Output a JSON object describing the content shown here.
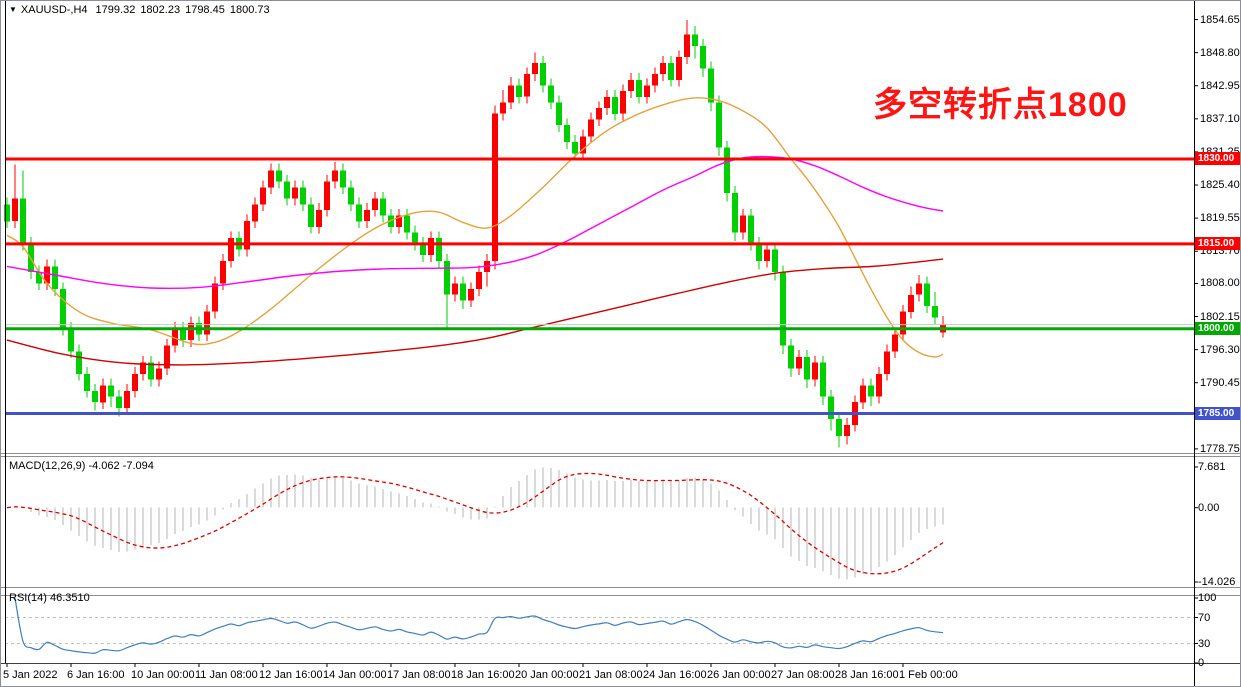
{
  "header": {
    "dropdown_icon": "▼",
    "symbol": "XAUUSD-,H4",
    "open": "1799.32",
    "high": "1802.23",
    "low": "1798.45",
    "close": "1800.73"
  },
  "annotation": {
    "text": "多空转折点1800",
    "color": "#ff1414"
  },
  "panes": {
    "macd": {
      "label": "MACD(12,26,9) -4.062 -7.094",
      "y_ticks": [
        {
          "label": "7.681",
          "value": 7.681
        },
        {
          "label": "0.00",
          "value": 0
        },
        {
          "label": "-14.026",
          "value": -14.026
        }
      ]
    },
    "rsi": {
      "label": "RSI(14) 46.3510",
      "y_ticks": [
        {
          "label": "100",
          "value": 100
        },
        {
          "label": "70",
          "value": 70
        },
        {
          "label": "30",
          "value": 30
        },
        {
          "label": "0",
          "value": 0
        }
      ],
      "levels": [
        70,
        30
      ]
    }
  },
  "colors": {
    "candle_up": "#ff0000",
    "candle_down": "#00d000",
    "ma_fast": "#e6a23c",
    "ma_mid": "#ff00ff",
    "ma_slow": "#d00000",
    "macd_hist": "#b4b4b4",
    "macd_signal": "#e00000",
    "rsi_line": "#3f7fbf",
    "current_price_line": "#c8c8c8",
    "grid_dashed": "#c0c0c0",
    "axis_line": "#000000",
    "separator": "#909090"
  },
  "chart_data": {
    "type": "candlestick",
    "symbol": "XAUUSD-",
    "timeframe": "H4",
    "price_axis_ticks": [
      "1854.65",
      "1848.80",
      "1842.95",
      "1837.10",
      "1831.25",
      "1825.40",
      "1819.55",
      "1813.70",
      "1808.00",
      "1802.15",
      "1796.30",
      "1790.45",
      "1784.60",
      "1778.75"
    ],
    "price_lines": [
      {
        "label": "1830.00",
        "price": 1830.0,
        "color": "#ff0000"
      },
      {
        "label": "1815.00",
        "price": 1815.0,
        "color": "#ff0000"
      },
      {
        "label": "1800.00",
        "price": 1800.0,
        "color": "#00a800"
      },
      {
        "label": "1785.00",
        "price": 1785.0,
        "color": "#4153cc"
      }
    ],
    "current_price": 1800.73,
    "x_axis": {
      "start_index": 0,
      "step": 8,
      "labels": [
        "5 Jan 2022",
        "6 Jan 16:00",
        "10 Jan 00:00",
        "11 Jan 08:00",
        "12 Jan 16:00",
        "14 Jan 00:00",
        "17 Jan 08:00",
        "18 Jan 16:00",
        "20 Jan 00:00",
        "21 Jan 08:00",
        "24 Jan 16:00",
        "26 Jan 00:00",
        "27 Jan 08:00",
        "28 Jan 16:00",
        "1 Feb 00:00"
      ]
    },
    "candles": [
      [
        1822,
        1823.2,
        1817.8,
        1819
      ],
      [
        1819,
        1829,
        1817.8,
        1823
      ],
      [
        1823,
        1828,
        1813.8,
        1815
      ],
      [
        1815,
        1816.2,
        1808.8,
        1810
      ],
      [
        1810,
        1811.2,
        1806.8,
        1808
      ],
      [
        1808,
        1812.2,
        1806.8,
        1811
      ],
      [
        1811,
        1812.2,
        1805.8,
        1807
      ],
      [
        1807,
        1808.2,
        1798.8,
        1800
      ],
      [
        1800,
        1801.2,
        1794.8,
        1796
      ],
      [
        1796,
        1797.2,
        1790.8,
        1792
      ],
      [
        1792,
        1793.2,
        1787.8,
        1789
      ],
      [
        1789,
        1790.2,
        1785.5,
        1787
      ],
      [
        1787,
        1791.2,
        1785.8,
        1790
      ],
      [
        1790,
        1791.2,
        1786.2,
        1788
      ],
      [
        1788,
        1789.2,
        1784.5,
        1786
      ],
      [
        1786,
        1790.2,
        1784.8,
        1789
      ],
      [
        1789,
        1793.2,
        1787.8,
        1792
      ],
      [
        1792,
        1795.2,
        1790.8,
        1794
      ],
      [
        1794,
        1795.2,
        1789.8,
        1791
      ],
      [
        1791,
        1794.2,
        1789.8,
        1793
      ],
      [
        1793,
        1798.2,
        1791.8,
        1797
      ],
      [
        1797,
        1801.2,
        1795.8,
        1800
      ],
      [
        1800,
        1801.2,
        1796.8,
        1798
      ],
      [
        1798,
        1802.2,
        1796.8,
        1801
      ],
      [
        1801,
        1802.2,
        1797.8,
        1799
      ],
      [
        1799,
        1804.2,
        1797.8,
        1803
      ],
      [
        1803,
        1809.2,
        1801.8,
        1808
      ],
      [
        1808,
        1813.2,
        1806.8,
        1812
      ],
      [
        1812,
        1817.2,
        1810.8,
        1816
      ],
      [
        1816,
        1817.2,
        1812.8,
        1814
      ],
      [
        1814,
        1820.2,
        1812.8,
        1819
      ],
      [
        1819,
        1823.2,
        1817.8,
        1822
      ],
      [
        1822,
        1826.2,
        1820.8,
        1825
      ],
      [
        1825,
        1829.2,
        1823.8,
        1828
      ],
      [
        1828,
        1829.2,
        1824.8,
        1826
      ],
      [
        1826,
        1827.2,
        1821.8,
        1823
      ],
      [
        1823,
        1826.2,
        1821.8,
        1825
      ],
      [
        1825,
        1826.2,
        1820.8,
        1822
      ],
      [
        1822,
        1823.2,
        1816.8,
        1818
      ],
      [
        1818,
        1822.2,
        1816.8,
        1821
      ],
      [
        1821,
        1827.2,
        1819.8,
        1826
      ],
      [
        1826,
        1829.5,
        1824.8,
        1828
      ],
      [
        1828,
        1829.2,
        1823.8,
        1825
      ],
      [
        1825,
        1826.2,
        1820.8,
        1822
      ],
      [
        1822,
        1823.2,
        1817.8,
        1819
      ],
      [
        1819,
        1822.2,
        1817.8,
        1821
      ],
      [
        1821,
        1824.2,
        1819.8,
        1823
      ],
      [
        1823,
        1824.2,
        1818.8,
        1820
      ],
      [
        1820,
        1821.2,
        1816.8,
        1818
      ],
      [
        1818,
        1821.2,
        1816.8,
        1820
      ],
      [
        1820,
        1821.2,
        1815.8,
        1817
      ],
      [
        1817,
        1818.2,
        1813.8,
        1815
      ],
      [
        1815,
        1816.2,
        1811.8,
        1813
      ],
      [
        1813,
        1817.2,
        1811.8,
        1816
      ],
      [
        1816,
        1817.2,
        1810.8,
        1812
      ],
      [
        1812,
        1813.2,
        1800,
        1806
      ],
      [
        1806,
        1809.2,
        1804.8,
        1808
      ],
      [
        1808,
        1809.2,
        1803.5,
        1805
      ],
      [
        1805,
        1808.2,
        1803.8,
        1807
      ],
      [
        1807,
        1811.2,
        1805.8,
        1810
      ],
      [
        1810,
        1813.2,
        1807.5,
        1812
      ],
      [
        1812,
        1839.5,
        1810.5,
        1838
      ],
      [
        1838,
        1842.2,
        1836.8,
        1840
      ],
      [
        1840,
        1844.5,
        1838.8,
        1843
      ],
      [
        1843,
        1844.2,
        1839.8,
        1841
      ],
      [
        1841,
        1846.2,
        1839.8,
        1845
      ],
      [
        1845,
        1848.8,
        1843.8,
        1847
      ],
      [
        1847,
        1848.2,
        1841.8,
        1843
      ],
      [
        1843,
        1844.2,
        1838.8,
        1840
      ],
      [
        1840,
        1841.2,
        1834.8,
        1836
      ],
      [
        1836,
        1837.2,
        1831.8,
        1833
      ],
      [
        1833,
        1834.2,
        1829.8,
        1831
      ],
      [
        1831,
        1835.2,
        1829.8,
        1834
      ],
      [
        1834,
        1838.2,
        1832.8,
        1837
      ],
      [
        1837,
        1840.2,
        1835.8,
        1839
      ],
      [
        1839,
        1842.2,
        1837.8,
        1841
      ],
      [
        1841,
        1842.2,
        1836.8,
        1838
      ],
      [
        1838,
        1843.2,
        1836.8,
        1842
      ],
      [
        1842,
        1845.2,
        1840.8,
        1844
      ],
      [
        1844,
        1845.2,
        1839.8,
        1841
      ],
      [
        1841,
        1844.2,
        1839.8,
        1843
      ],
      [
        1843,
        1846.2,
        1841.8,
        1845
      ],
      [
        1845,
        1848.2,
        1843.8,
        1847
      ],
      [
        1847,
        1848.2,
        1842.8,
        1844
      ],
      [
        1844,
        1849.2,
        1842.8,
        1848
      ],
      [
        1848,
        1854.6,
        1846.8,
        1852
      ],
      [
        1852,
        1853.5,
        1847.8,
        1850
      ],
      [
        1850,
        1851.2,
        1844.5,
        1846
      ],
      [
        1846,
        1847.2,
        1838.5,
        1840
      ],
      [
        1840,
        1841.2,
        1830.5,
        1832
      ],
      [
        1832,
        1833.2,
        1822.5,
        1824
      ],
      [
        1824,
        1825.2,
        1815.5,
        1817
      ],
      [
        1817,
        1821.2,
        1815.8,
        1820
      ],
      [
        1820,
        1821.2,
        1813.8,
        1815
      ],
      [
        1815,
        1816.2,
        1810.5,
        1812
      ],
      [
        1812,
        1815.2,
        1810.8,
        1814
      ],
      [
        1814,
        1815.2,
        1808.5,
        1810
      ],
      [
        1810,
        1811.2,
        1795.5,
        1797
      ],
      [
        1797,
        1798.2,
        1791.5,
        1793
      ],
      [
        1793,
        1796.2,
        1791.8,
        1795
      ],
      [
        1795,
        1796.2,
        1789.5,
        1791
      ],
      [
        1791,
        1795.2,
        1789.8,
        1794
      ],
      [
        1794,
        1795.2,
        1786.5,
        1788
      ],
      [
        1788,
        1789.2,
        1782,
        1784
      ],
      [
        1784,
        1785.2,
        1779,
        1781
      ],
      [
        1781,
        1784.2,
        1779.5,
        1783
      ],
      [
        1783,
        1788.2,
        1781.8,
        1787
      ],
      [
        1787,
        1791.2,
        1785.8,
        1790
      ],
      [
        1790,
        1791.2,
        1786.3,
        1788
      ],
      [
        1788,
        1793.2,
        1786.8,
        1792
      ],
      [
        1792,
        1797.2,
        1790.8,
        1796
      ],
      [
        1796,
        1800.2,
        1794.8,
        1799
      ],
      [
        1799,
        1804.2,
        1797.8,
        1803
      ],
      [
        1803,
        1807.5,
        1801.8,
        1806
      ],
      [
        1806,
        1809.5,
        1804.8,
        1808
      ],
      [
        1808,
        1809.2,
        1802.8,
        1804
      ],
      [
        1804,
        1806.5,
        1800.8,
        1802
      ],
      [
        1799.32,
        1802.23,
        1798.45,
        1800.73
      ]
    ],
    "ma_lines": [
      {
        "name": "ma-fast-orange",
        "color": "#e6a23c",
        "points": [
          [
            0,
            1816.5
          ],
          [
            2,
            1814.5
          ],
          [
            5,
            1808
          ],
          [
            9,
            1803
          ],
          [
            13,
            1801
          ],
          [
            18,
            1799.8
          ],
          [
            23,
            1797.4
          ],
          [
            26,
            1797.6
          ],
          [
            29,
            1799.5
          ],
          [
            33,
            1803.5
          ],
          [
            38,
            1809.5
          ],
          [
            43,
            1815
          ],
          [
            47,
            1818.5
          ],
          [
            51,
            1820.5
          ],
          [
            54,
            1820.6
          ],
          [
            57,
            1818.8
          ],
          [
            60,
            1817.8
          ],
          [
            63,
            1820
          ],
          [
            67,
            1825
          ],
          [
            71,
            1830.5
          ],
          [
            75,
            1835
          ],
          [
            79,
            1838
          ],
          [
            83,
            1840
          ],
          [
            86,
            1840.8
          ],
          [
            89,
            1840.3
          ],
          [
            92,
            1838.5
          ],
          [
            95,
            1835.5
          ],
          [
            98,
            1830
          ],
          [
            100,
            1826.5
          ],
          [
            102,
            1822.5
          ],
          [
            104,
            1818
          ],
          [
            106,
            1812.5
          ],
          [
            108,
            1807
          ],
          [
            110,
            1802
          ],
          [
            112,
            1798
          ],
          [
            114,
            1795.8
          ],
          [
            116,
            1795
          ],
          [
            117,
            1795.5
          ]
        ]
      },
      {
        "name": "ma-mid-magenta",
        "color": "#ff00ff",
        "points": [
          [
            0,
            1811
          ],
          [
            6,
            1809.5
          ],
          [
            12,
            1808
          ],
          [
            18,
            1807.2
          ],
          [
            24,
            1807.3
          ],
          [
            30,
            1808.3
          ],
          [
            36,
            1809.4
          ],
          [
            42,
            1810.2
          ],
          [
            48,
            1810.6
          ],
          [
            54,
            1810.7
          ],
          [
            58,
            1810.8
          ],
          [
            62,
            1811.5
          ],
          [
            66,
            1813
          ],
          [
            70,
            1815.5
          ],
          [
            74,
            1818.5
          ],
          [
            78,
            1821.5
          ],
          [
            82,
            1824.5
          ],
          [
            86,
            1827
          ],
          [
            89,
            1829
          ],
          [
            92,
            1830.2
          ],
          [
            95,
            1830.4
          ],
          [
            98,
            1830
          ],
          [
            101,
            1828.8
          ],
          [
            104,
            1827
          ],
          [
            107,
            1825
          ],
          [
            110,
            1823.3
          ],
          [
            113,
            1822
          ],
          [
            115,
            1821.3
          ],
          [
            117,
            1820.8
          ]
        ]
      },
      {
        "name": "ma-slow-darkred",
        "color": "#d00000",
        "points": [
          [
            0,
            1798
          ],
          [
            7,
            1795.5
          ],
          [
            14,
            1794
          ],
          [
            22,
            1793.6
          ],
          [
            30,
            1794
          ],
          [
            38,
            1794.8
          ],
          [
            46,
            1795.8
          ],
          [
            54,
            1797
          ],
          [
            60,
            1798.3
          ],
          [
            66,
            1800.3
          ],
          [
            72,
            1802.3
          ],
          [
            78,
            1804.3
          ],
          [
            84,
            1806.3
          ],
          [
            90,
            1808.2
          ],
          [
            96,
            1809.8
          ],
          [
            102,
            1810.6
          ],
          [
            108,
            1811
          ],
          [
            112,
            1811.5
          ],
          [
            117,
            1812.3
          ]
        ]
      }
    ],
    "macd_readout": {
      "macd": -4.062,
      "signal": -7.094
    },
    "rsi_readout": 46.351
  }
}
